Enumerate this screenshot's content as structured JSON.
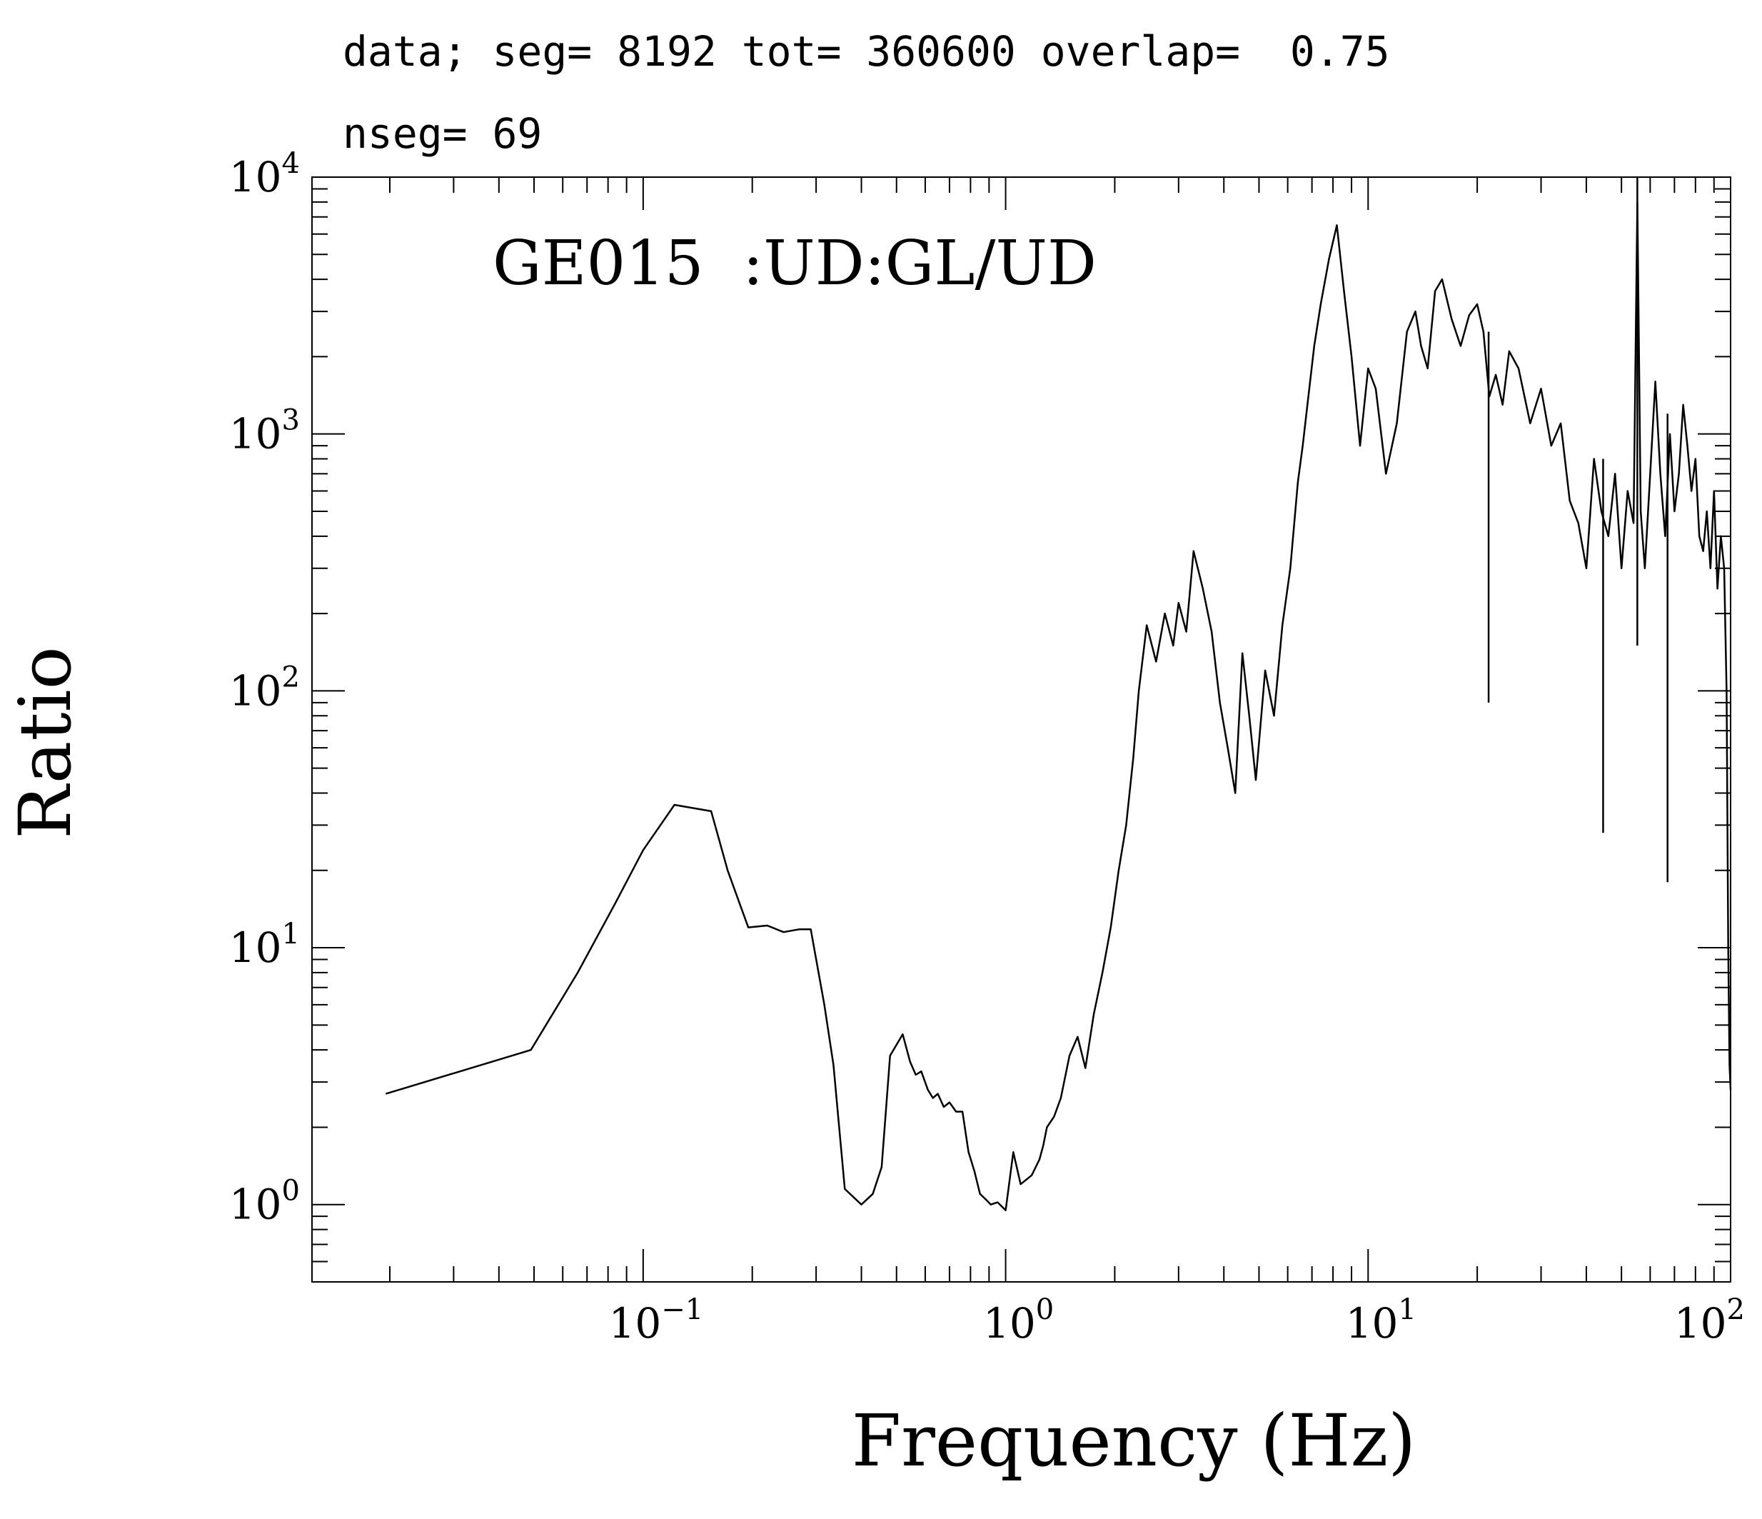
{
  "header": {
    "line1": "data; seg= 8192 tot= 360600 overlap=  0.75",
    "line2": "nseg= 69"
  },
  "chart_data": {
    "type": "line",
    "title": "",
    "annotation": "GE015  :UD:GL/UD",
    "xlabel": "Frequency (Hz)",
    "ylabel": "Ratio",
    "xscale": "log",
    "yscale": "log",
    "xlim": [
      0.0122,
      100
    ],
    "ylim": [
      0.5,
      10000
    ],
    "grid": false,
    "x_ticks": [
      {
        "value": 0.1,
        "base": "10",
        "exp": "−1"
      },
      {
        "value": 1,
        "base": "10",
        "exp": "0"
      },
      {
        "value": 10,
        "base": "10",
        "exp": "1"
      },
      {
        "value": 100,
        "base": "10",
        "exp": "2"
      }
    ],
    "y_ticks": [
      {
        "value": 1,
        "base": "10",
        "exp": "0"
      },
      {
        "value": 10,
        "base": "10",
        "exp": "1"
      },
      {
        "value": 100,
        "base": "10",
        "exp": "2"
      },
      {
        "value": 1000,
        "base": "10",
        "exp": "3"
      },
      {
        "value": 10000,
        "base": "10",
        "exp": "4"
      }
    ],
    "series": [
      {
        "color": "#000000",
        "x": [
          0.0195,
          0.049,
          0.066,
          0.084,
          0.1,
          0.122,
          0.154,
          0.171,
          0.195,
          0.22,
          0.244,
          0.27,
          0.29,
          0.316,
          0.335,
          0.36,
          0.4,
          0.43,
          0.455,
          0.48,
          0.52,
          0.545,
          0.565,
          0.585,
          0.61,
          0.63,
          0.65,
          0.675,
          0.7,
          0.73,
          0.76,
          0.79,
          0.82,
          0.85,
          0.88,
          0.91,
          0.95,
          1.0,
          1.05,
          1.1,
          1.18,
          1.24,
          1.27,
          1.3,
          1.36,
          1.42,
          1.5,
          1.58,
          1.66,
          1.75,
          1.85,
          1.95,
          2.05,
          2.15,
          2.25,
          2.33,
          2.45,
          2.6,
          2.75,
          2.9,
          3.0,
          3.15,
          3.3,
          3.5,
          3.7,
          3.9,
          4.1,
          4.3,
          4.5,
          4.7,
          4.9,
          5.2,
          5.5,
          5.8,
          6.1,
          6.4,
          6.6,
          6.8,
          7.1,
          7.4,
          7.8,
          8.2,
          8.6,
          9.0,
          9.5,
          10.0,
          10.5,
          11.2,
          12.0,
          12.8,
          13.5,
          14.0,
          14.6,
          15.3,
          16.0,
          17.0,
          18.0,
          19.0,
          20.0,
          20.8,
          21.6,
          22.5,
          23.5,
          24.5,
          26.0,
          28.0,
          30.0,
          32.0,
          34.0,
          36.0,
          38.0,
          40.0,
          42.0,
          44.0,
          46.0,
          48.0,
          50.0,
          52.0,
          54.0,
          55.3,
          56.5,
          58.0,
          60.0,
          62.0,
          64.0,
          66.0,
          68.0,
          70.0,
          72.0,
          74.0,
          76.0,
          78.0,
          80.0,
          82.0,
          84.0,
          86.0,
          88.0,
          90.0,
          92.0,
          94.0,
          96.0,
          97.5,
          98.5,
          99.3,
          100.0
        ],
        "y": [
          2.7,
          4.0,
          8.0,
          15.0,
          24.0,
          36.0,
          34.0,
          20.0,
          12.0,
          12.2,
          11.5,
          11.8,
          11.8,
          6.0,
          3.5,
          1.15,
          1.0,
          1.1,
          1.4,
          3.8,
          4.6,
          3.6,
          3.2,
          3.3,
          2.8,
          2.6,
          2.7,
          2.4,
          2.5,
          2.3,
          2.3,
          1.6,
          1.35,
          1.1,
          1.05,
          1.0,
          1.02,
          0.95,
          1.6,
          1.2,
          1.3,
          1.5,
          1.7,
          2.0,
          2.2,
          2.6,
          3.8,
          4.5,
          3.4,
          5.5,
          8.0,
          12.0,
          20.0,
          30.0,
          55.0,
          100.0,
          180.0,
          130.0,
          200.0,
          150.0,
          220.0,
          170.0,
          350.0,
          250.0,
          170.0,
          90.0,
          60.0,
          40.0,
          140.0,
          80.0,
          45.0,
          120.0,
          80.0,
          180.0,
          300.0,
          650.0,
          900.0,
          1300.0,
          2200.0,
          3200.0,
          4800.0,
          6500.0,
          3500.0,
          2000.0,
          900.0,
          1800.0,
          1500.0,
          700.0,
          1100.0,
          2500.0,
          3000.0,
          2200.0,
          1800.0,
          3600.0,
          4000.0,
          2800.0,
          2200.0,
          2900.0,
          3200.0,
          2500.0,
          1400.0,
          1700.0,
          1300.0,
          2100.0,
          1800.0,
          1100.0,
          1500.0,
          900.0,
          1100.0,
          550.0,
          450.0,
          300.0,
          800.0,
          500.0,
          400.0,
          700.0,
          300.0,
          600.0,
          450.0,
          8000.0,
          500.0,
          300.0,
          700.0,
          1600.0,
          700.0,
          400.0,
          1000.0,
          500.0,
          700.0,
          1300.0,
          900.0,
          600.0,
          800.0,
          400.0,
          350.0,
          500.0,
          300.0,
          600.0,
          250.0,
          400.0,
          300.0,
          100.0,
          10.0,
          3.5,
          2.8
        ]
      }
    ],
    "spikes": [
      {
        "x": 21.5,
        "y_low": 90,
        "y_high": 2500
      },
      {
        "x": 44.5,
        "y_low": 28,
        "y_high": 800
      },
      {
        "x": 55.3,
        "y_low": 150,
        "y_high": 10000
      },
      {
        "x": 67.0,
        "y_low": 18,
        "y_high": 1200
      }
    ]
  }
}
